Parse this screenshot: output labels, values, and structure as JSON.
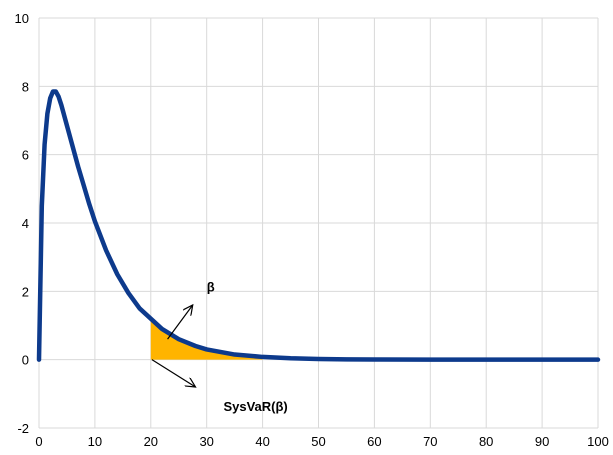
{
  "chart_data": {
    "type": "line",
    "title": "",
    "xlabel": "",
    "ylabel": "",
    "xlim": [
      0,
      100
    ],
    "ylim": [
      -2,
      10
    ],
    "x_ticks": [
      0,
      10,
      20,
      30,
      40,
      50,
      60,
      70,
      80,
      90,
      100
    ],
    "y_ticks": [
      -2,
      0,
      2,
      4,
      6,
      8,
      10
    ],
    "x_tick_labels": [
      "0",
      "10",
      "20",
      "30",
      "40",
      "50",
      "60",
      "70",
      "80",
      "90",
      "100"
    ],
    "y_tick_labels": [
      "-2",
      "0",
      "2",
      "4",
      "6",
      "8",
      "10"
    ],
    "grid": true,
    "legend": "none",
    "series": [
      {
        "color": "#0d3a8c",
        "x": [
          0,
          0.5,
          1,
          1.5,
          2,
          2.5,
          3,
          3.5,
          4,
          5,
          6,
          7,
          8,
          9,
          10,
          12,
          14,
          16,
          18,
          20,
          22,
          25,
          28,
          30,
          35,
          40,
          45,
          50,
          55,
          60,
          70,
          80,
          90,
          100
        ],
        "y": [
          0,
          4.5,
          6.3,
          7.2,
          7.65,
          7.85,
          7.85,
          7.7,
          7.45,
          6.85,
          6.25,
          5.65,
          5.1,
          4.55,
          4.05,
          3.2,
          2.5,
          1.95,
          1.5,
          1.2,
          0.9,
          0.6,
          0.4,
          0.3,
          0.15,
          0.08,
          0.04,
          0.02,
          0.01,
          0.005,
          0.002,
          0.001,
          0.0005,
          0
        ]
      }
    ],
    "shaded_region": {
      "color": "#ffb400",
      "x_from": 20,
      "x_to": 40
    },
    "annotations": [
      {
        "text": "β",
        "x": 30,
        "y": 2
      },
      {
        "text": "SysVaR(β)",
        "x": 33,
        "y": -1.5
      }
    ],
    "arrows": [
      {
        "from": [
          23,
          0.6
        ],
        "to": [
          27.5,
          1.6
        ]
      },
      {
        "from": [
          20.2,
          0
        ],
        "to": [
          28,
          -0.8
        ]
      }
    ]
  }
}
